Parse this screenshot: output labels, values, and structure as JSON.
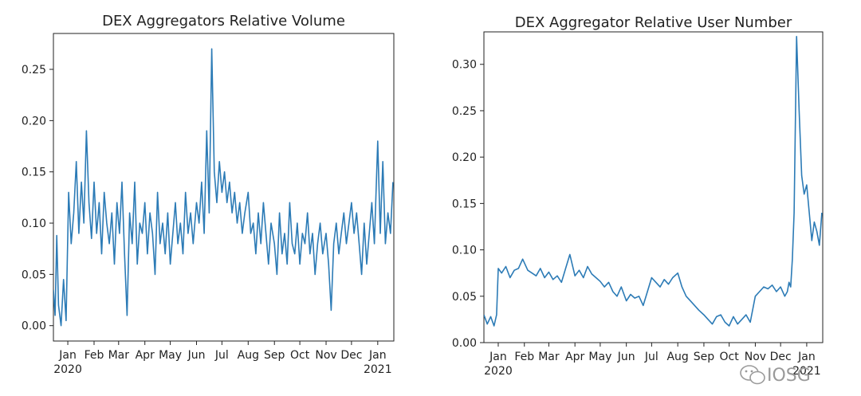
{
  "watermark": "IOSG",
  "chart_data": [
    {
      "type": "line",
      "title": "DEX Aggregators Relative Volume",
      "xlabel": "",
      "ylabel": "",
      "color": "#2c7bb6",
      "x_range": [
        "2019-12-15",
        "2021-01-20"
      ],
      "ylim": [
        -0.015,
        0.285
      ],
      "yticks": [
        0.0,
        0.05,
        0.1,
        0.15,
        0.2,
        0.25
      ],
      "ytick_labels": [
        "0.00",
        "0.05",
        "0.10",
        "0.15",
        "0.20",
        "0.25"
      ],
      "xticks": [
        {
          "date": "2020-01-01",
          "label": "Jan",
          "sublabel": "2020"
        },
        {
          "date": "2020-02-01",
          "label": "Feb"
        },
        {
          "date": "2020-03-01",
          "label": "Mar"
        },
        {
          "date": "2020-04-01",
          "label": "Apr"
        },
        {
          "date": "2020-05-01",
          "label": "May"
        },
        {
          "date": "2020-06-01",
          "label": "Jun"
        },
        {
          "date": "2020-07-01",
          "label": "Jul"
        },
        {
          "date": "2020-08-01",
          "label": "Aug"
        },
        {
          "date": "2020-09-01",
          "label": "Sep"
        },
        {
          "date": "2020-10-01",
          "label": "Oct"
        },
        {
          "date": "2020-11-01",
          "label": "Nov"
        },
        {
          "date": "2020-12-01",
          "label": "Dec"
        },
        {
          "date": "2021-01-01",
          "label": "Jan",
          "sublabel": "2021"
        }
      ],
      "series": [
        {
          "x": [
            "2019-12-15",
            "2019-12-17",
            "2019-12-19",
            "2019-12-21",
            "2019-12-24",
            "2019-12-27",
            "2019-12-30",
            "2020-01-02",
            "2020-01-05",
            "2020-01-08",
            "2020-01-11",
            "2020-01-14",
            "2020-01-17",
            "2020-01-20",
            "2020-01-23",
            "2020-01-26",
            "2020-01-29",
            "2020-02-01",
            "2020-02-04",
            "2020-02-07",
            "2020-02-10",
            "2020-02-13",
            "2020-02-16",
            "2020-02-19",
            "2020-02-22",
            "2020-02-25",
            "2020-02-28",
            "2020-03-02",
            "2020-03-05",
            "2020-03-08",
            "2020-03-11",
            "2020-03-14",
            "2020-03-17",
            "2020-03-20",
            "2020-03-23",
            "2020-03-26",
            "2020-03-29",
            "2020-04-01",
            "2020-04-04",
            "2020-04-07",
            "2020-04-10",
            "2020-04-13",
            "2020-04-16",
            "2020-04-19",
            "2020-04-22",
            "2020-04-25",
            "2020-04-28",
            "2020-05-01",
            "2020-05-04",
            "2020-05-07",
            "2020-05-10",
            "2020-05-13",
            "2020-05-16",
            "2020-05-19",
            "2020-05-22",
            "2020-05-25",
            "2020-05-28",
            "2020-06-01",
            "2020-06-04",
            "2020-06-07",
            "2020-06-10",
            "2020-06-13",
            "2020-06-16",
            "2020-06-19",
            "2020-06-22",
            "2020-06-25",
            "2020-06-28",
            "2020-07-01",
            "2020-07-04",
            "2020-07-07",
            "2020-07-10",
            "2020-07-13",
            "2020-07-16",
            "2020-07-19",
            "2020-07-22",
            "2020-07-25",
            "2020-07-28",
            "2020-08-01",
            "2020-08-04",
            "2020-08-07",
            "2020-08-10",
            "2020-08-13",
            "2020-08-16",
            "2020-08-19",
            "2020-08-22",
            "2020-08-25",
            "2020-08-28",
            "2020-09-01",
            "2020-09-04",
            "2020-09-07",
            "2020-09-10",
            "2020-09-13",
            "2020-09-16",
            "2020-09-19",
            "2020-09-22",
            "2020-09-25",
            "2020-09-28",
            "2020-10-01",
            "2020-10-04",
            "2020-10-07",
            "2020-10-10",
            "2020-10-13",
            "2020-10-16",
            "2020-10-19",
            "2020-10-22",
            "2020-10-25",
            "2020-10-28",
            "2020-11-01",
            "2020-11-04",
            "2020-11-07",
            "2020-11-10",
            "2020-11-13",
            "2020-11-16",
            "2020-11-19",
            "2020-11-22",
            "2020-11-25",
            "2020-11-28",
            "2020-12-01",
            "2020-12-04",
            "2020-12-07",
            "2020-12-10",
            "2020-12-13",
            "2020-12-16",
            "2020-12-19",
            "2020-12-22",
            "2020-12-25",
            "2020-12-28",
            "2021-01-01",
            "2021-01-04",
            "2021-01-07",
            "2021-01-10",
            "2021-01-13",
            "2021-01-16",
            "2021-01-19"
          ],
          "y": [
            0.035,
            0.01,
            0.088,
            0.02,
            0.0,
            0.045,
            0.005,
            0.13,
            0.08,
            0.11,
            0.16,
            0.09,
            0.14,
            0.1,
            0.19,
            0.12,
            0.085,
            0.14,
            0.09,
            0.12,
            0.07,
            0.13,
            0.1,
            0.08,
            0.11,
            0.06,
            0.12,
            0.09,
            0.14,
            0.07,
            0.01,
            0.11,
            0.08,
            0.14,
            0.06,
            0.1,
            0.09,
            0.12,
            0.07,
            0.11,
            0.09,
            0.05,
            0.13,
            0.08,
            0.1,
            0.07,
            0.11,
            0.06,
            0.09,
            0.12,
            0.08,
            0.1,
            0.07,
            0.13,
            0.09,
            0.11,
            0.08,
            0.12,
            0.1,
            0.14,
            0.09,
            0.19,
            0.11,
            0.27,
            0.15,
            0.12,
            0.16,
            0.13,
            0.15,
            0.12,
            0.14,
            0.11,
            0.13,
            0.1,
            0.12,
            0.09,
            0.11,
            0.13,
            0.09,
            0.1,
            0.07,
            0.11,
            0.08,
            0.12,
            0.09,
            0.06,
            0.1,
            0.08,
            0.05,
            0.11,
            0.07,
            0.09,
            0.06,
            0.12,
            0.08,
            0.07,
            0.1,
            0.06,
            0.09,
            0.08,
            0.11,
            0.07,
            0.09,
            0.05,
            0.08,
            0.1,
            0.07,
            0.09,
            0.06,
            0.015,
            0.08,
            0.1,
            0.07,
            0.09,
            0.11,
            0.08,
            0.1,
            0.12,
            0.09,
            0.11,
            0.08,
            0.05,
            0.1,
            0.06,
            0.09,
            0.12,
            0.08,
            0.18,
            0.09,
            0.16,
            0.08,
            0.11,
            0.09,
            0.14
          ]
        }
      ]
    },
    {
      "type": "line",
      "title": "DEX Aggregator Relative User Number",
      "xlabel": "",
      "ylabel": "",
      "color": "#2c7bb6",
      "x_range": [
        "2019-12-15",
        "2021-01-20"
      ],
      "ylim": [
        0.0,
        0.335
      ],
      "yticks": [
        0.0,
        0.05,
        0.1,
        0.15,
        0.2,
        0.25,
        0.3
      ],
      "ytick_labels": [
        "0.00",
        "0.05",
        "0.10",
        "0.15",
        "0.20",
        "0.25",
        "0.30"
      ],
      "xticks": [
        {
          "date": "2020-01-01",
          "label": "Jan",
          "sublabel": "2020"
        },
        {
          "date": "2020-02-01",
          "label": "Feb"
        },
        {
          "date": "2020-03-01",
          "label": "Mar"
        },
        {
          "date": "2020-04-01",
          "label": "Apr"
        },
        {
          "date": "2020-05-01",
          "label": "May"
        },
        {
          "date": "2020-06-01",
          "label": "Jun"
        },
        {
          "date": "2020-07-01",
          "label": "Jul"
        },
        {
          "date": "2020-08-01",
          "label": "Aug"
        },
        {
          "date": "2020-09-01",
          "label": "Sep"
        },
        {
          "date": "2020-10-01",
          "label": "Oct"
        },
        {
          "date": "2020-11-01",
          "label": "Nov"
        },
        {
          "date": "2020-12-01",
          "label": "Dec"
        },
        {
          "date": "2021-01-01",
          "label": "Jan",
          "sublabel": "2021"
        }
      ],
      "series": [
        {
          "x": [
            "2019-12-15",
            "2019-12-19",
            "2019-12-23",
            "2019-12-27",
            "2019-12-30",
            "2020-01-01",
            "2020-01-05",
            "2020-01-10",
            "2020-01-15",
            "2020-01-20",
            "2020-01-25",
            "2020-01-30",
            "2020-02-05",
            "2020-02-10",
            "2020-02-15",
            "2020-02-20",
            "2020-02-25",
            "2020-03-01",
            "2020-03-06",
            "2020-03-11",
            "2020-03-16",
            "2020-03-21",
            "2020-03-26",
            "2020-04-01",
            "2020-04-06",
            "2020-04-11",
            "2020-04-16",
            "2020-04-21",
            "2020-04-26",
            "2020-05-01",
            "2020-05-06",
            "2020-05-11",
            "2020-05-16",
            "2020-05-21",
            "2020-05-26",
            "2020-06-01",
            "2020-06-06",
            "2020-06-11",
            "2020-06-16",
            "2020-06-21",
            "2020-06-26",
            "2020-07-01",
            "2020-07-06",
            "2020-07-11",
            "2020-07-16",
            "2020-07-21",
            "2020-07-26",
            "2020-08-01",
            "2020-08-06",
            "2020-08-11",
            "2020-08-16",
            "2020-08-21",
            "2020-08-26",
            "2020-09-01",
            "2020-09-06",
            "2020-09-11",
            "2020-09-16",
            "2020-09-21",
            "2020-09-26",
            "2020-10-01",
            "2020-10-06",
            "2020-10-11",
            "2020-10-16",
            "2020-10-21",
            "2020-10-26",
            "2020-11-01",
            "2020-11-06",
            "2020-11-11",
            "2020-11-16",
            "2020-11-21",
            "2020-11-26",
            "2020-12-01",
            "2020-12-06",
            "2020-12-09",
            "2020-12-11",
            "2020-12-13",
            "2020-12-15",
            "2020-12-17",
            "2020-12-20",
            "2020-12-23",
            "2020-12-26",
            "2020-12-29",
            "2021-01-01",
            "2021-01-04",
            "2021-01-07",
            "2021-01-10",
            "2021-01-13",
            "2021-01-16",
            "2021-01-19"
          ],
          "y": [
            0.03,
            0.02,
            0.028,
            0.018,
            0.03,
            0.08,
            0.075,
            0.082,
            0.07,
            0.078,
            0.08,
            0.09,
            0.078,
            0.075,
            0.072,
            0.08,
            0.07,
            0.076,
            0.068,
            0.072,
            0.065,
            0.08,
            0.095,
            0.072,
            0.078,
            0.07,
            0.082,
            0.074,
            0.07,
            0.066,
            0.06,
            0.065,
            0.055,
            0.05,
            0.06,
            0.045,
            0.052,
            0.048,
            0.05,
            0.04,
            0.055,
            0.07,
            0.065,
            0.06,
            0.068,
            0.063,
            0.07,
            0.075,
            0.06,
            0.05,
            0.045,
            0.04,
            0.035,
            0.03,
            0.025,
            0.02,
            0.028,
            0.03,
            0.022,
            0.018,
            0.028,
            0.02,
            0.025,
            0.03,
            0.022,
            0.05,
            0.055,
            0.06,
            0.058,
            0.062,
            0.055,
            0.06,
            0.05,
            0.055,
            0.065,
            0.06,
            0.09,
            0.14,
            0.33,
            0.25,
            0.18,
            0.16,
            0.17,
            0.14,
            0.11,
            0.13,
            0.12,
            0.105,
            0.14
          ]
        }
      ]
    }
  ]
}
